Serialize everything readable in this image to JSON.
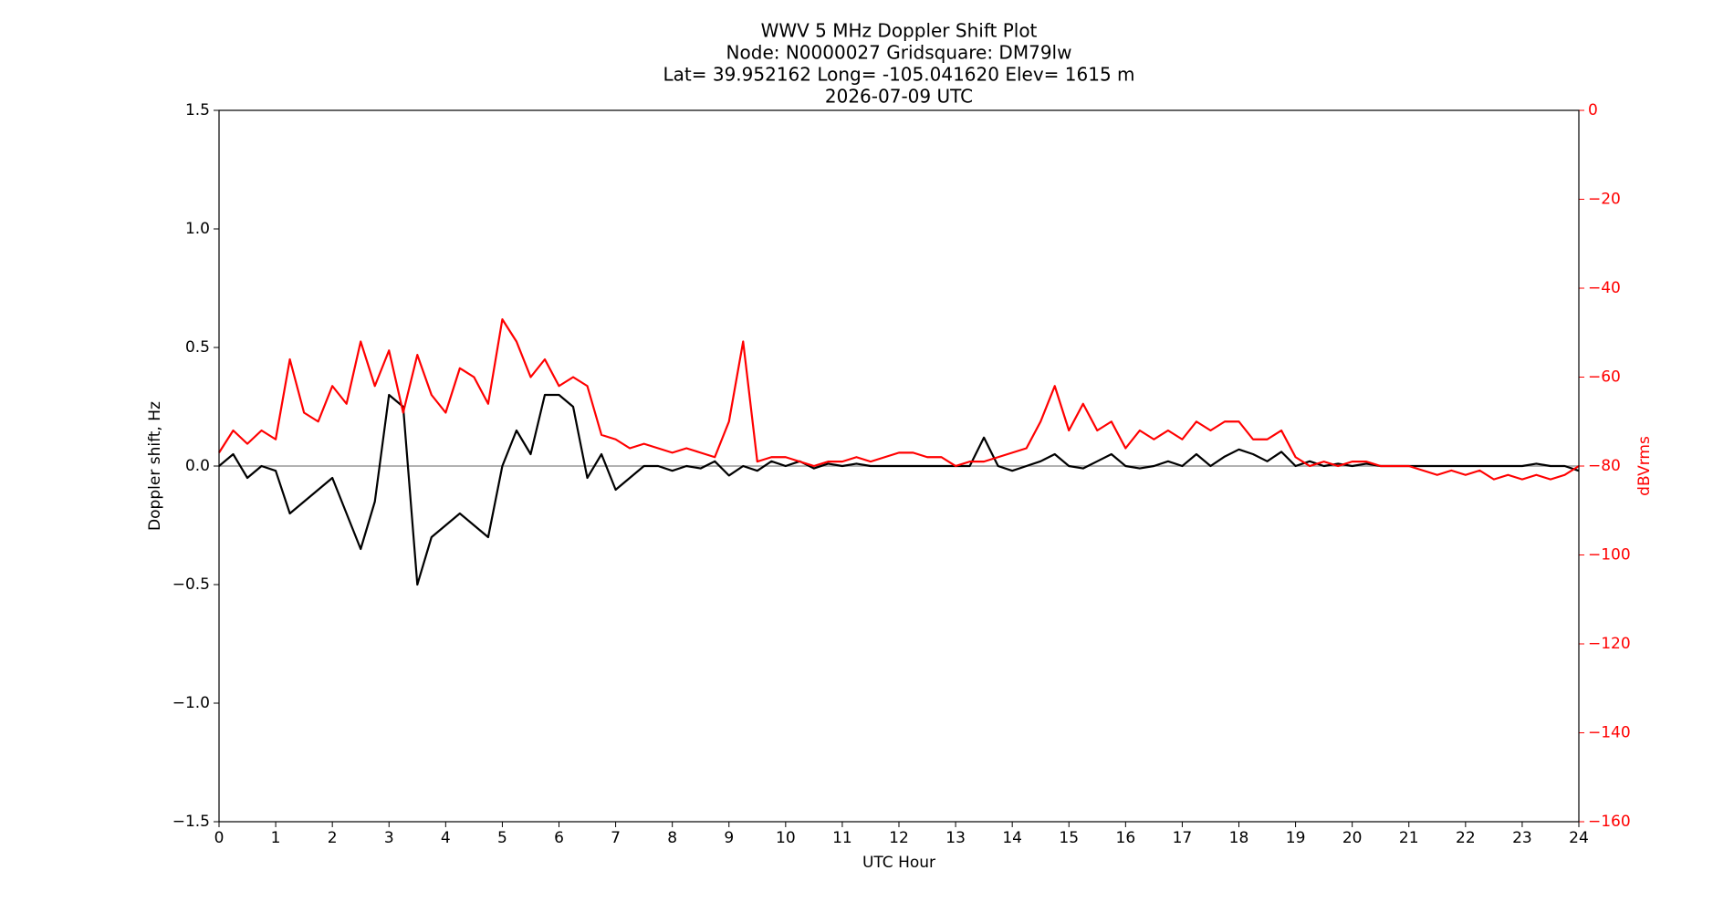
{
  "chart_data": {
    "type": "line",
    "title": [
      "WWV 5 MHz Doppler Shift Plot",
      "Node:  N0000027     Gridsquare:  DM79lw",
      "Lat= 39.952162    Long= -105.041620    Elev= 1615 m",
      "2026-07-09  UTC"
    ],
    "x_label": "UTC Hour",
    "y_label": "Doppler shift, Hz",
    "y2_label": "dBVrms",
    "x": [
      0,
      0.25,
      0.5,
      0.75,
      1,
      1.25,
      1.5,
      1.75,
      2,
      2.25,
      2.5,
      2.75,
      3,
      3.25,
      3.5,
      3.75,
      4,
      4.25,
      4.5,
      4.75,
      5,
      5.25,
      5.5,
      5.75,
      6,
      6.25,
      6.5,
      6.75,
      7,
      7.25,
      7.5,
      7.75,
      8,
      8.25,
      8.5,
      8.75,
      9,
      9.25,
      9.5,
      9.75,
      10,
      10.25,
      10.5,
      10.75,
      11,
      11.25,
      11.5,
      11.75,
      12,
      12.25,
      12.5,
      12.75,
      13,
      13.25,
      13.5,
      13.75,
      14,
      14.25,
      14.5,
      14.75,
      15,
      15.25,
      15.5,
      15.75,
      16,
      16.25,
      16.5,
      16.75,
      17,
      17.25,
      17.5,
      17.75,
      18,
      18.25,
      18.5,
      18.75,
      19,
      19.25,
      19.5,
      19.75,
      20,
      20.25,
      20.5,
      20.75,
      21,
      21.25,
      21.5,
      21.75,
      22,
      22.25,
      22.5,
      22.75,
      23,
      23.25,
      23.5,
      23.75,
      24
    ],
    "series": [
      {
        "name": "Doppler shift",
        "color": "#000000",
        "axis": "y",
        "values": [
          0,
          0.05,
          -0.05,
          0,
          -0.02,
          -0.2,
          -0.15,
          -0.1,
          -0.05,
          -0.2,
          -0.35,
          -0.15,
          0.3,
          0.25,
          -0.5,
          -0.3,
          -0.25,
          -0.2,
          -0.25,
          -0.3,
          0,
          0.15,
          0.05,
          0.3,
          0.3,
          0.25,
          -0.05,
          0.05,
          -0.1,
          -0.05,
          0,
          0,
          -0.02,
          0,
          -0.01,
          0.02,
          -0.04,
          0,
          -0.02,
          0.02,
          0,
          0.02,
          -0.01,
          0.01,
          0,
          0.01,
          0,
          0,
          0,
          0,
          0,
          0,
          0,
          0,
          0.12,
          0,
          -0.02,
          0,
          0.02,
          0.05,
          0,
          -0.01,
          0.02,
          0.05,
          0,
          -0.01,
          0,
          0.02,
          0,
          0.05,
          0,
          0.04,
          0.07,
          0.05,
          0.02,
          0.06,
          0,
          0.02,
          0,
          0.01,
          0,
          0.01,
          0,
          0,
          0,
          0,
          0,
          0,
          0,
          0,
          0,
          0,
          0,
          0.01,
          0,
          0,
          -0.02
        ]
      },
      {
        "name": "dBVrms",
        "color": "#ff0000",
        "axis": "y2",
        "values": [
          -77,
          -72,
          -75,
          -72,
          -74,
          -56,
          -68,
          -70,
          -62,
          -66,
          -52,
          -62,
          -54,
          -68,
          -55,
          -64,
          -68,
          -58,
          -60,
          -66,
          -47,
          -52,
          -60,
          -56,
          -62,
          -60,
          -62,
          -73,
          -74,
          -76,
          -75,
          -76,
          -77,
          -76,
          -77,
          -78,
          -70,
          -52,
          -79,
          -78,
          -78,
          -79,
          -80,
          -79,
          -79,
          -78,
          -79,
          -78,
          -77,
          -77,
          -78,
          -78,
          -80,
          -79,
          -79,
          -78,
          -77,
          -76,
          -70,
          -62,
          -72,
          -66,
          -72,
          -70,
          -76,
          -72,
          -74,
          -72,
          -74,
          -70,
          -72,
          -70,
          -70,
          -74,
          -74,
          -72,
          -78,
          -80,
          -79,
          -80,
          -79,
          -79,
          -80,
          -80,
          -80,
          -81,
          -82,
          -81,
          -82,
          -81,
          -83,
          -82,
          -83,
          -82,
          -83,
          -82,
          -80
        ]
      }
    ],
    "hlines": [
      0
    ],
    "xlim": [
      0,
      24
    ],
    "xticks": [
      0,
      1,
      2,
      3,
      4,
      5,
      6,
      7,
      8,
      9,
      10,
      11,
      12,
      13,
      14,
      15,
      16,
      17,
      18,
      19,
      20,
      21,
      22,
      23,
      24
    ],
    "ylim": [
      -1.5,
      1.5
    ],
    "yticks": [
      {
        "value": -1.5,
        "label": "−1.5"
      },
      {
        "value": -1,
        "label": "−1.0"
      },
      {
        "value": -0.5,
        "label": "−0.5"
      },
      {
        "value": 0,
        "label": "0.0"
      },
      {
        "value": 0.5,
        "label": "0.5"
      },
      {
        "value": 1,
        "label": "1.0"
      },
      {
        "value": 1.5,
        "label": "1.5"
      }
    ],
    "y2lim": [
      -160,
      0
    ],
    "y2ticks": [
      {
        "value": -160,
        "label": "−160"
      },
      {
        "value": -140,
        "label": "−140"
      },
      {
        "value": -120,
        "label": "−120"
      },
      {
        "value": -100,
        "label": "−100"
      },
      {
        "value": -80,
        "label": "−80"
      },
      {
        "value": -60,
        "label": "−60"
      },
      {
        "value": -40,
        "label": "−40"
      },
      {
        "value": -20,
        "label": "−20"
      },
      0
    ],
    "y2_color": "#ff0000",
    "hline_color": "#999999"
  }
}
